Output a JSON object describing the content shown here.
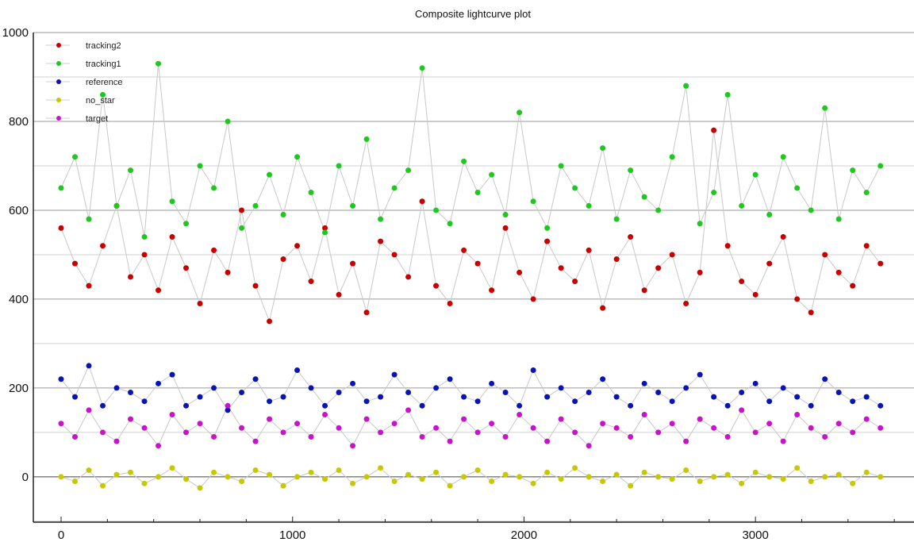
{
  "chart_data": {
    "type": "scatter",
    "title": "Composite lightcurve plot",
    "xlabel": "",
    "ylabel": "",
    "xlim": [
      -120,
      3685
    ],
    "ylim": [
      -102,
      1000
    ],
    "xticks": [
      0,
      1000,
      2000,
      3000
    ],
    "yticks": [
      0,
      200,
      400,
      600,
      800,
      1000
    ],
    "grid": true,
    "legend_position": "top-left",
    "line_color": "#c8c8c8",
    "x": [
      0,
      60,
      120,
      180,
      240,
      300,
      360,
      420,
      480,
      540,
      600,
      660,
      720,
      780,
      840,
      900,
      960,
      1020,
      1080,
      1140,
      1200,
      1260,
      1320,
      1380,
      1440,
      1500,
      1560,
      1620,
      1680,
      1740,
      1800,
      1860,
      1920,
      1980,
      2040,
      2100,
      2160,
      2220,
      2280,
      2340,
      2400,
      2460,
      2520,
      2580,
      2640,
      2700,
      2760,
      2820,
      2880,
      2940,
      3000,
      3060,
      3120,
      3180,
      3240,
      3300,
      3360,
      3420,
      3480,
      3540
    ],
    "series": [
      {
        "name": "tracking2",
        "color": "#c80000",
        "values": [
          560,
          480,
          430,
          520,
          610,
          450,
          500,
          420,
          540,
          470,
          390,
          510,
          460,
          600,
          430,
          350,
          490,
          520,
          440,
          560,
          410,
          480,
          370,
          530,
          500,
          450,
          620,
          430,
          390,
          510,
          480,
          420,
          560,
          460,
          400,
          530,
          470,
          440,
          510,
          380,
          490,
          540,
          420,
          470,
          500,
          390,
          460,
          780,
          520,
          440,
          410,
          480,
          540,
          400,
          370,
          500,
          460,
          430,
          520,
          480
        ]
      },
      {
        "name": "tracking1",
        "color": "#1ec81e",
        "values": [
          650,
          720,
          580,
          860,
          610,
          690,
          540,
          930,
          620,
          570,
          700,
          650,
          800,
          560,
          610,
          680,
          590,
          720,
          640,
          550,
          700,
          610,
          760,
          580,
          650,
          690,
          920,
          600,
          570,
          710,
          640,
          680,
          590,
          820,
          620,
          560,
          700,
          650,
          610,
          740,
          580,
          690,
          630,
          600,
          720,
          880,
          570,
          640,
          860,
          610,
          680,
          590,
          720,
          650,
          600,
          830,
          580,
          690,
          640,
          700
        ]
      },
      {
        "name": "reference",
        "color": "#0a14b4",
        "values": [
          220,
          180,
          250,
          160,
          200,
          190,
          170,
          210,
          230,
          160,
          180,
          200,
          150,
          190,
          220,
          170,
          180,
          240,
          200,
          160,
          190,
          210,
          170,
          180,
          230,
          190,
          160,
          200,
          220,
          180,
          170,
          210,
          190,
          160,
          240,
          180,
          200,
          170,
          190,
          220,
          180,
          160,
          210,
          190,
          170,
          200,
          230,
          180,
          160,
          190,
          210,
          170,
          200,
          180,
          160,
          220,
          190,
          170,
          180,
          160
        ]
      },
      {
        "name": "no_star",
        "color": "#c8c800",
        "values": [
          0,
          -10,
          15,
          -20,
          5,
          10,
          -15,
          0,
          20,
          -5,
          -25,
          10,
          0,
          -10,
          15,
          5,
          -20,
          0,
          10,
          -5,
          15,
          -15,
          0,
          20,
          -10,
          5,
          -5,
          10,
          -20,
          0,
          15,
          -10,
          5,
          0,
          -15,
          10,
          -5,
          20,
          0,
          -10,
          5,
          -20,
          10,
          0,
          -5,
          15,
          -10,
          0,
          5,
          -15,
          10,
          0,
          -5,
          20,
          -10,
          0,
          5,
          -15,
          10,
          0
        ]
      },
      {
        "name": "target",
        "color": "#c814c8",
        "values": [
          120,
          90,
          150,
          100,
          80,
          130,
          110,
          70,
          140,
          100,
          120,
          90,
          160,
          110,
          80,
          130,
          100,
          120,
          90,
          140,
          110,
          70,
          130,
          100,
          120,
          150,
          90,
          110,
          80,
          130,
          100,
          120,
          90,
          140,
          110,
          80,
          130,
          100,
          70,
          120,
          110,
          90,
          140,
          100,
          120,
          80,
          130,
          110,
          90,
          150,
          100,
          120,
          80,
          140,
          110,
          90,
          120,
          100,
          130,
          110
        ]
      }
    ]
  }
}
